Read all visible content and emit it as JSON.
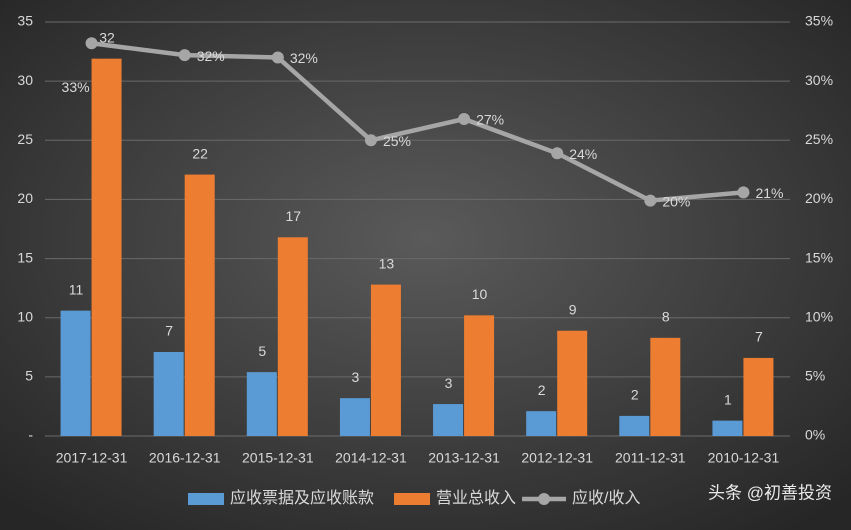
{
  "chart_data": {
    "type": "bar",
    "categories": [
      "2017-12-31",
      "2016-12-31",
      "2015-12-31",
      "2014-12-31",
      "2013-12-31",
      "2012-12-31",
      "2011-12-31",
      "2010-12-31"
    ],
    "series": [
      {
        "name": "应收票据及应收账款",
        "color": "#5b9bd5",
        "values": [
          10.6,
          7.1,
          5.4,
          3.2,
          2.7,
          2.1,
          1.7,
          1.3
        ],
        "value_labels": [
          "11",
          "7",
          "5",
          "3",
          "3",
          "2",
          "2",
          "1"
        ]
      },
      {
        "name": "营业总收入",
        "color": "#ed7d31",
        "values": [
          31.9,
          22.1,
          16.8,
          12.8,
          10.2,
          8.9,
          8.3,
          6.6
        ],
        "value_labels": [
          "32",
          "22",
          "17",
          "13",
          "10",
          "9",
          "8",
          "7"
        ]
      },
      {
        "name": "应收/收入",
        "type": "line",
        "axis": "y2",
        "color": "#a6a6a6",
        "values": [
          33.2,
          32.2,
          32.0,
          25.0,
          26.8,
          23.9,
          19.9,
          20.6
        ],
        "value_labels": [
          "33%",
          "32%",
          "32%",
          "25%",
          "27%",
          "24%",
          "20%",
          "21%"
        ]
      }
    ],
    "ylim": [
      0,
      35
    ],
    "yticks": [
      {
        "value": 0,
        "label": "-"
      },
      5,
      10,
      15,
      20,
      25,
      30,
      35
    ],
    "y2lim": [
      0,
      35
    ],
    "y2ticks": [
      {
        "value": 0,
        "label": "0%"
      },
      {
        "value": 5,
        "label": "5%"
      },
      {
        "value": 10,
        "label": "10%"
      },
      {
        "value": 15,
        "label": "15%"
      },
      {
        "value": 20,
        "label": "20%"
      },
      {
        "value": 25,
        "label": "25%"
      },
      {
        "value": 30,
        "label": "30%"
      },
      {
        "value": 35,
        "label": "35%"
      }
    ],
    "grid": true,
    "legend": "bottom",
    "watermark": "头条 @初善投资"
  }
}
